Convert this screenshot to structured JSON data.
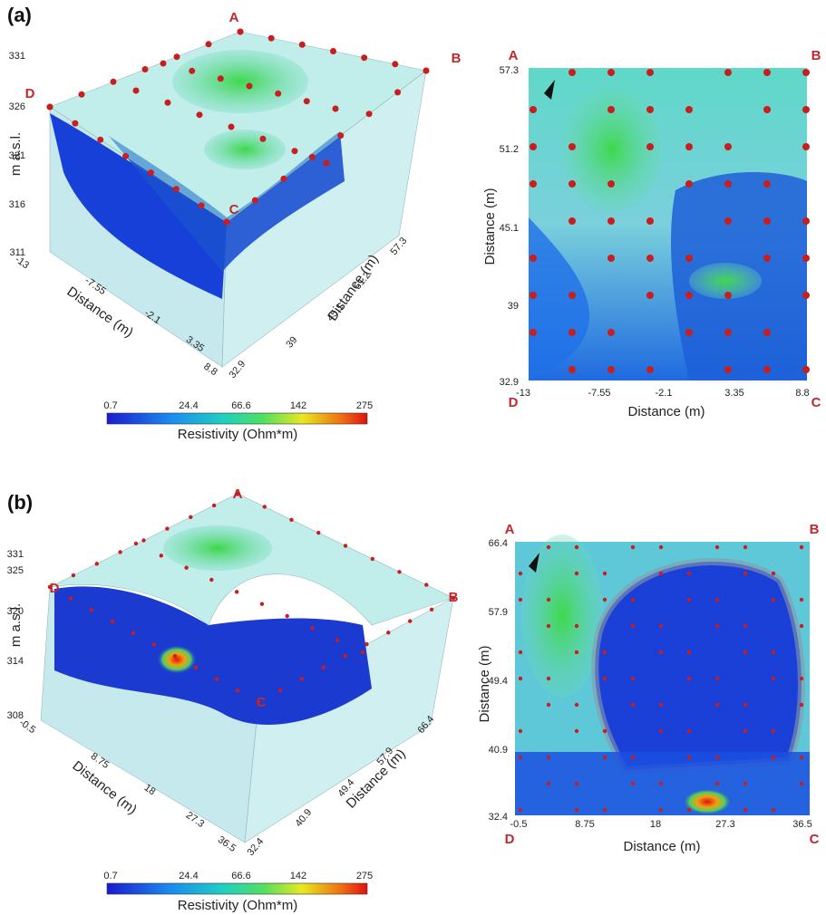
{
  "panels": [
    {
      "label": "(a)",
      "block": {
        "corners": [
          "A",
          "B",
          "C",
          "D"
        ],
        "z_label": "m a.s.l.",
        "z_ticks": [
          331,
          326,
          321,
          316,
          311
        ],
        "x_label": "Distance (m)",
        "x_ticks": [
          -13,
          -7.55,
          -2.1,
          3.35,
          8.8
        ],
        "y_label": "Distance (m)",
        "y_ticks": [
          32.9,
          39,
          45.1,
          51.2,
          57.3
        ]
      },
      "plan": {
        "corners": [
          "A",
          "B",
          "C",
          "D"
        ],
        "x_label": "Distance (m)",
        "x_ticks": [
          -13,
          -7.55,
          -2.1,
          3.35,
          8.8
        ],
        "y_label": "Distance (m)",
        "y_ticks": [
          57.3,
          51.2,
          45.1,
          39,
          32.9
        ]
      },
      "colorbar": {
        "ticks": [
          0.7,
          24.4,
          66.6,
          142,
          275
        ],
        "label": "Resistivity (Ohm*m)"
      }
    },
    {
      "label": "(b)",
      "block": {
        "corners": [
          "A",
          "B",
          "C",
          "D"
        ],
        "z_label": "m a.s.l.",
        "z_ticks": [
          331,
          325,
          320,
          314,
          308
        ],
        "x_label": "Distance (m)",
        "x_ticks": [
          -0.5,
          8.75,
          18,
          27.3,
          36.5
        ],
        "y_label": "Distance (m)",
        "y_ticks": [
          32.4,
          40.9,
          49.4,
          57.9,
          66.4
        ]
      },
      "plan": {
        "corners": [
          "A",
          "B",
          "C",
          "D"
        ],
        "x_label": "Distance (m)",
        "x_ticks": [
          -0.5,
          8.75,
          18,
          27.3,
          36.5
        ],
        "y_label": "Distance (m)",
        "y_ticks": [
          66.4,
          57.9,
          49.4,
          40.9,
          32.4
        ]
      },
      "colorbar": {
        "ticks": [
          0.7,
          24.4,
          66.6,
          142,
          275
        ],
        "label": "Resistivity (Ohm*m)"
      }
    }
  ]
}
